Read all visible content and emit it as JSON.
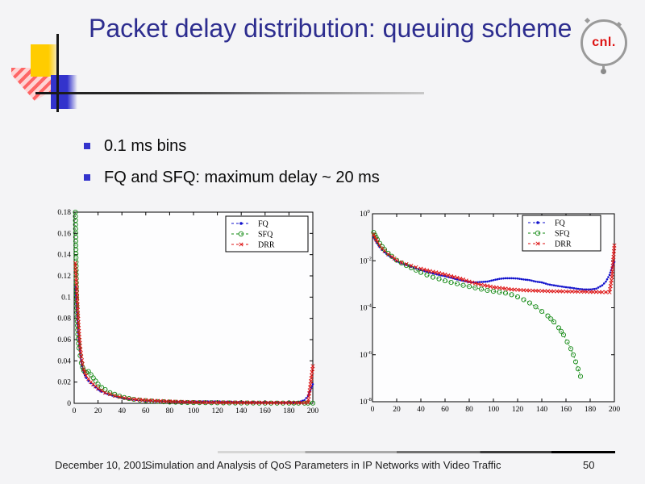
{
  "slide": {
    "title": "Packet delay distribution: queuing scheme",
    "bullets": [
      "0.1 ms bins",
      "FQ and SFQ: maximum delay ~ 20 ms"
    ],
    "logo": {
      "text": "cnl."
    },
    "footer": {
      "date": "December 10, 2001",
      "title": "Simulation and Analysis of QoS Parameters in IP Networks with Video Traffic",
      "page": "50"
    }
  },
  "colors": {
    "title": "#2d2d8f",
    "bullet_square": "#3333cc",
    "fq": "#1111cc",
    "sfq": "#118811",
    "drr": "#dd1111",
    "background": "#f4f4f6"
  },
  "chart_data": [
    {
      "id": "left",
      "type": "scatter",
      "title": "",
      "xlabel": "",
      "ylabel": "",
      "yscale": "linear",
      "xlim": [
        0,
        200
      ],
      "ylim": [
        0,
        0.18
      ],
      "xticks": [
        0,
        20,
        40,
        60,
        80,
        100,
        120,
        140,
        160,
        180,
        200
      ],
      "yticks": [
        0,
        0.02,
        0.04,
        0.06,
        0.08,
        0.1,
        0.12,
        0.14,
        0.16,
        0.18
      ],
      "ytick_labels": [
        "0",
        "0.02",
        "0.04",
        "0.06",
        "0.08",
        "0.1",
        "0.12",
        "0.14",
        "0.16",
        "0.18"
      ],
      "grid": false,
      "legend_position": "upper right",
      "series": [
        {
          "name": "FQ",
          "color": "#1111cc",
          "marker": "dot",
          "dash": "1.5 2",
          "x": [
            1,
            2,
            3,
            4,
            5,
            6,
            7,
            8,
            10,
            12,
            14,
            16,
            18,
            20,
            23,
            26,
            30,
            34,
            38,
            42,
            46,
            50,
            55,
            60,
            65,
            70,
            80,
            90,
            100,
            110,
            120,
            130,
            140,
            150,
            160,
            170,
            180,
            188,
            193,
            196,
            200
          ],
          "y": [
            0.11,
            0.09,
            0.072,
            0.058,
            0.047,
            0.039,
            0.033,
            0.029,
            0.024,
            0.021,
            0.019,
            0.017,
            0.015,
            0.013,
            0.011,
            0.0095,
            0.008,
            0.0066,
            0.0055,
            0.0046,
            0.004,
            0.0035,
            0.003,
            0.0026,
            0.0023,
            0.002,
            0.0017,
            0.0016,
            0.0017,
            0.0019,
            0.0018,
            0.0015,
            0.0012,
            0.001,
            0.0009,
            0.0008,
            0.0008,
            0.0012,
            0.003,
            0.007,
            0.018
          ]
        },
        {
          "name": "SFQ",
          "color": "#118811",
          "marker": "circle",
          "dash": "2 2",
          "x": [
            1,
            2,
            3,
            4,
            5,
            6,
            7,
            8,
            10,
            12,
            14,
            16,
            18,
            20,
            23,
            26,
            30,
            34,
            38,
            42,
            46,
            50,
            55,
            60,
            65,
            70,
            80,
            90,
            100,
            110,
            120,
            130,
            140,
            150,
            160,
            170,
            180,
            188,
            193,
            196,
            200
          ],
          "y": [
            0.18,
            0.098,
            0.065,
            0.052,
            0.045,
            0.038,
            0.034,
            0.031,
            0.029,
            0.03,
            0.027,
            0.024,
            0.021,
            0.018,
            0.015,
            0.013,
            0.01,
            0.0085,
            0.0068,
            0.0055,
            0.0045,
            0.0038,
            0.0031,
            0.0025,
            0.0021,
            0.0017,
            0.0012,
            0.0009,
            0.0007,
            0.0006,
            0.0005,
            0.0004,
            0.0003,
            0.0003,
            0.0002,
            0.0002,
            0.0002,
            0.0002,
            0.0002,
            0.0002,
            0.0002
          ]
        },
        {
          "name": "DRR",
          "color": "#dd1111",
          "marker": "x",
          "dash": "4 2",
          "x": [
            1,
            2,
            3,
            4,
            5,
            6,
            7,
            8,
            10,
            12,
            14,
            16,
            18,
            20,
            23,
            26,
            30,
            34,
            38,
            42,
            46,
            50,
            55,
            60,
            65,
            70,
            80,
            90,
            100,
            110,
            120,
            130,
            140,
            150,
            160,
            170,
            180,
            188,
            193,
            196,
            200
          ],
          "y": [
            0.132,
            0.112,
            0.088,
            0.068,
            0.054,
            0.044,
            0.037,
            0.032,
            0.026,
            0.023,
            0.02,
            0.018,
            0.016,
            0.014,
            0.012,
            0.01,
            0.0086,
            0.0071,
            0.006,
            0.0051,
            0.0044,
            0.0039,
            0.0034,
            0.0029,
            0.0026,
            0.0023,
            0.0018,
            0.0014,
            0.0011,
            0.0009,
            0.0008,
            0.0008,
            0.0007,
            0.0007,
            0.0006,
            0.0006,
            0.0006,
            0.0006,
            0.0006,
            0.0008,
            0.035
          ]
        }
      ]
    },
    {
      "id": "right",
      "type": "scatter",
      "title": "",
      "xlabel": "",
      "ylabel": "",
      "yscale": "log",
      "xlim": [
        0,
        200
      ],
      "ylim": [
        1e-08,
        1
      ],
      "xticks": [
        0,
        20,
        40,
        60,
        80,
        100,
        120,
        140,
        160,
        180,
        200
      ],
      "ytick_exponents": [
        0,
        -2,
        -4,
        -6,
        -8
      ],
      "grid": false,
      "legend_position": "upper right",
      "series": [
        {
          "name": "FQ",
          "color": "#1111cc",
          "marker": "dot",
          "dash": "1.5 2",
          "x": [
            1,
            2,
            3,
            4,
            6,
            8,
            10,
            13,
            16,
            20,
            24,
            28,
            32,
            36,
            40,
            45,
            50,
            55,
            60,
            65,
            70,
            75,
            80,
            85,
            90,
            95,
            100,
            105,
            110,
            115,
            120,
            125,
            130,
            135,
            140,
            145,
            150,
            155,
            160,
            165,
            170,
            175,
            180,
            185,
            190,
            193,
            196,
            198,
            200
          ],
          "y": [
            0.1,
            0.082,
            0.066,
            0.054,
            0.038,
            0.029,
            0.023,
            0.017,
            0.0135,
            0.0095,
            0.0078,
            0.0066,
            0.0056,
            0.0047,
            0.004,
            0.0034,
            0.0029,
            0.0025,
            0.0022,
            0.0019,
            0.0016,
            0.0014,
            0.00125,
            0.0012,
            0.00125,
            0.0013,
            0.0015,
            0.0017,
            0.0018,
            0.0018,
            0.00175,
            0.0016,
            0.0015,
            0.0013,
            0.0012,
            0.001,
            0.0009,
            0.00082,
            0.00075,
            0.0007,
            0.00064,
            0.0006,
            0.0006,
            0.00065,
            0.0009,
            0.0013,
            0.0025,
            0.005,
            0.009
          ]
        },
        {
          "name": "SFQ",
          "color": "#118811",
          "marker": "circle",
          "dash": "2 2",
          "x": [
            1,
            2,
            3,
            4,
            6,
            8,
            10,
            13,
            16,
            20,
            24,
            28,
            32,
            36,
            40,
            45,
            50,
            55,
            60,
            65,
            70,
            75,
            80,
            85,
            90,
            95,
            100,
            105,
            110,
            115,
            120,
            125,
            130,
            135,
            140,
            145,
            150,
            154,
            158,
            161,
            164,
            166,
            168,
            170,
            172
          ],
          "y": [
            0.16,
            0.125,
            0.1,
            0.08,
            0.055,
            0.04,
            0.03,
            0.021,
            0.0155,
            0.0105,
            0.008,
            0.0063,
            0.005,
            0.004,
            0.0032,
            0.0025,
            0.002,
            0.0017,
            0.0014,
            0.0012,
            0.00105,
            0.0009,
            0.0008,
            0.0007,
            0.00062,
            0.00055,
            0.0005,
            0.00046,
            0.00042,
            0.00036,
            0.00029,
            0.00022,
            0.00016,
            0.00011,
            7e-05,
            4.5e-05,
            2.5e-05,
            1.4e-05,
            7e-06,
            3.5e-06,
            1.8e-06,
            1e-06,
            5e-07,
            2.5e-07,
            1.2e-07
          ]
        },
        {
          "name": "DRR",
          "color": "#dd1111",
          "marker": "x",
          "dash": "4 2",
          "x": [
            1,
            2,
            3,
            4,
            6,
            8,
            10,
            13,
            16,
            20,
            24,
            28,
            32,
            36,
            40,
            45,
            50,
            55,
            60,
            65,
            70,
            75,
            80,
            85,
            90,
            95,
            100,
            105,
            110,
            115,
            120,
            125,
            130,
            135,
            140,
            145,
            150,
            155,
            160,
            165,
            170,
            175,
            180,
            185,
            190,
            193,
            196,
            198,
            200
          ],
          "y": [
            0.13,
            0.1,
            0.08,
            0.065,
            0.045,
            0.033,
            0.026,
            0.019,
            0.015,
            0.0105,
            0.0085,
            0.0072,
            0.0062,
            0.0053,
            0.0046,
            0.0039,
            0.0034,
            0.003,
            0.0026,
            0.0022,
            0.0019,
            0.0016,
            0.0013,
            0.0011,
            0.00095,
            0.00085,
            0.00075,
            0.0007,
            0.00065,
            0.0006,
            0.00058,
            0.00056,
            0.00054,
            0.00053,
            0.00052,
            0.00051,
            0.0005,
            0.0005,
            0.00049,
            0.00049,
            0.00048,
            0.00048,
            0.00047,
            0.00047,
            0.00046,
            0.00046,
            0.00046,
            0.002,
            0.045
          ]
        }
      ]
    }
  ]
}
